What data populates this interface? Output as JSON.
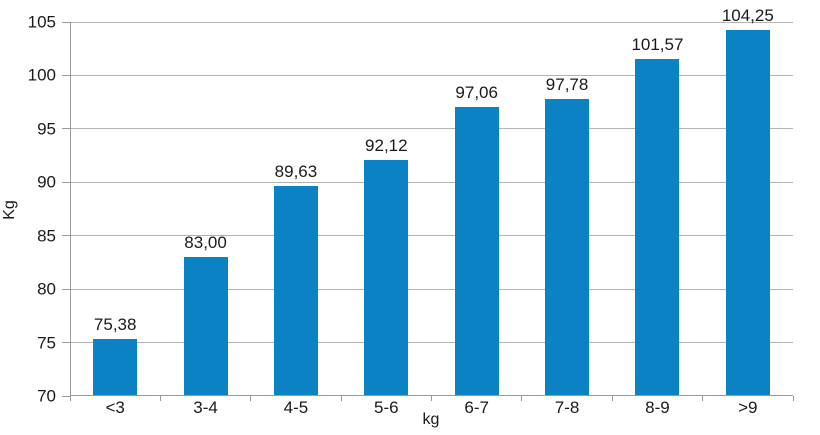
{
  "chart_data": {
    "type": "bar",
    "title": "",
    "categories": [
      "<3",
      "3-4",
      "4-5",
      "5-6",
      "6-7",
      "7-8",
      "8-9",
      ">9"
    ],
    "values": [
      75.38,
      83.0,
      89.63,
      92.12,
      97.06,
      97.78,
      101.57,
      104.25
    ],
    "value_labels": [
      "75,38",
      "83,00",
      "89,63",
      "92,12",
      "97,06",
      "97,78",
      "101,57",
      "104,25"
    ],
    "xlabel": "kg",
    "ylabel": "Kg",
    "ylim": [
      70,
      105
    ],
    "yticks": [
      70,
      75,
      80,
      85,
      90,
      95,
      100,
      105
    ],
    "grid": "horizontal",
    "legend": "none",
    "colors": {
      "bar": "#0b82c4",
      "gridline": "#b3b3b3",
      "axis": "#9a9a9a",
      "text": "#1a1a1a",
      "background": "#ffffff"
    }
  }
}
